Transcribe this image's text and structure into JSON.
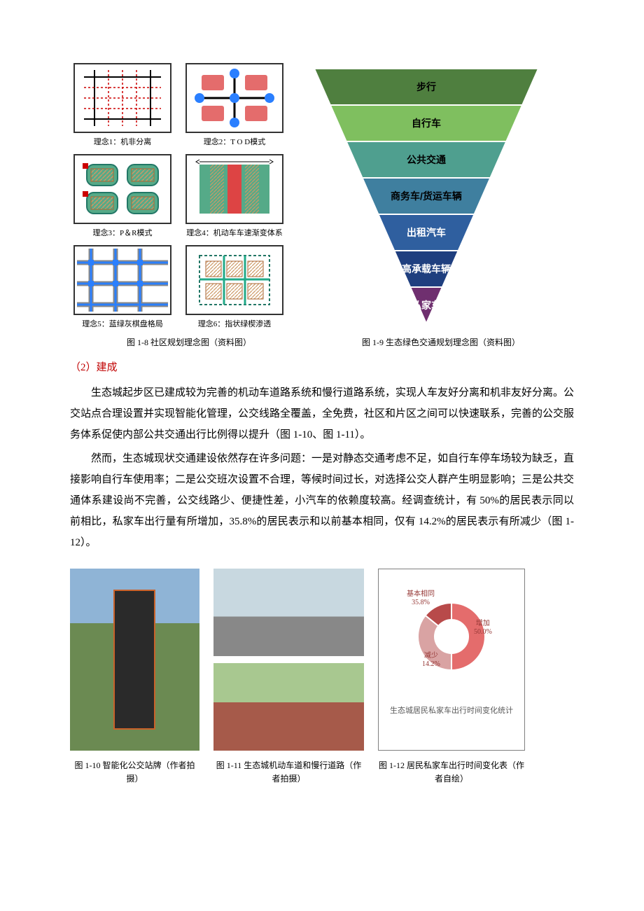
{
  "concepts": {
    "items": [
      {
        "label": "理念1：机非分离"
      },
      {
        "label": "理念2：T O D模式"
      },
      {
        "label": "理念3：P＆R模式"
      },
      {
        "label": "理念4：机动车车速渐变体系"
      },
      {
        "label": "理念5：蓝绿灰棋盘格局"
      },
      {
        "label": "理念6：指状绿楔渗透"
      }
    ],
    "caption": "图 1-8  社区规划理念图（资料图）"
  },
  "pyramid": {
    "caption": "图 1-9  生态绿色交通规划理念图（资料图）",
    "levels": [
      {
        "label": "步行",
        "color": "#4f7f3f"
      },
      {
        "label": "自行车",
        "color": "#7fbf5f"
      },
      {
        "label": "公共交通",
        "color": "#4f9f8f"
      },
      {
        "label": "商务车/货运车辆",
        "color": "#3f7f9f"
      },
      {
        "label": "出租汽车",
        "color": "#2f5f9f"
      },
      {
        "label": "高承载车辆",
        "color": "#1f3f7f"
      },
      {
        "label": "私家车",
        "color": "#6f2f6f"
      }
    ],
    "label_fontsize": 14,
    "label_color": "#000000",
    "background": "#ffffff"
  },
  "section_head": "（2）建成",
  "para1": "生态城起步区已建成较为完善的机动车道路系统和慢行道路系统，实现人车友好分离和机非友好分离。公交站点合理设置并实现智能化管理，公交线路全覆盖，全免费，社区和片区之间可以快速联系，完善的公交服务体系促使内部公共交通出行比例得以提升（图 1-10、图 1-11）。",
  "para2": "然而，生态城现状交通建设依然存在许多问题：一是对静态交通考虑不足，如自行车停车场较为缺乏，直接影响自行车使用率；二是公交班次设置不合理，等候时间过长，对选择公交人群产生明显影响；三是公共交通体系建设尚不完善，公交线路少、便捷性差，小汽车的依赖度较高。经调查统计，有 50%的居民表示同以前相比，私家车出行量有所增加，35.8%的居民表示和以前基本相同，仅有 14.2%的居民表示有所减少（图 1-12）。",
  "fig10_caption": "图 1-10  智能化公交站牌（作者拍摄）",
  "fig11_caption": "图 1-11  生态城机动车道和慢行道路（作者拍摄）",
  "fig12_caption": "图 1-12 居民私家车出行时间变化表（作者自绘）",
  "donut_chart": {
    "type": "donut",
    "title": "生态城居民私家车出行时间变化统计",
    "title_color": "#595959",
    "title_fontsize": 11,
    "border_color": "#7f7f7f",
    "background_color": "#ffffff",
    "inner_radius_pct": 50,
    "segments": [
      {
        "label": "增加",
        "value": 50.0,
        "value_text": "50.0%",
        "color": "#e46c6c"
      },
      {
        "label": "基本相同",
        "value": 35.8,
        "value_text": "35.8%",
        "color": "#d9a3a3"
      },
      {
        "label": "减少",
        "value": 14.2,
        "value_text": "14.2%",
        "color": "#b84a4a"
      }
    ],
    "label_color": "#953735",
    "label_fontsize": 10
  }
}
